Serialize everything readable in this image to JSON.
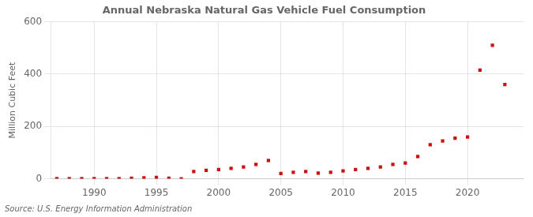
{
  "chart_data": {
    "type": "scatter",
    "title": "Annual Nebraska Natural Gas Vehicle Fuel Consumption",
    "ylabel": "Million Cubic Feet",
    "source": "Source: U.S. Energy Information Administration",
    "x": [
      1987,
      1988,
      1989,
      1990,
      1991,
      1992,
      1993,
      1994,
      1995,
      1996,
      1997,
      1998,
      1999,
      2000,
      2001,
      2002,
      2003,
      2004,
      2005,
      2006,
      2007,
      2008,
      2009,
      2010,
      2011,
      2012,
      2013,
      2014,
      2015,
      2016,
      2017,
      2018,
      2019,
      2020,
      2021,
      2022,
      2023
    ],
    "values": [
      1,
      1,
      1,
      1,
      1,
      1,
      2,
      4,
      5,
      2,
      0,
      28,
      32,
      35,
      40,
      45,
      55,
      70,
      20,
      25,
      28,
      22,
      25,
      30,
      35,
      40,
      45,
      55,
      60,
      85,
      130,
      145,
      155,
      160,
      415,
      510,
      360
    ],
    "color": "#cc1111",
    "marker": "square",
    "xlim": [
      1986.5,
      2024.5
    ],
    "xticks": [
      1990,
      1995,
      2000,
      2005,
      2010,
      2015,
      2020
    ],
    "ylim": [
      0,
      600
    ],
    "yticks": [
      0,
      200,
      400,
      600
    ],
    "grid": true
  }
}
